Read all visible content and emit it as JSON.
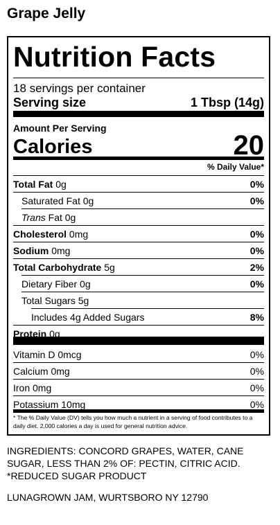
{
  "product_title": "Grape Jelly",
  "panel": {
    "title": "Nutrition Facts",
    "servings_per_container": "18 servings per container",
    "serving_size_label": "Serving size",
    "serving_size_value": "1 Tbsp (14g)",
    "amount_per_serving": "Amount Per Serving",
    "calories_label": "Calories",
    "calories_value": "20",
    "daily_value_header": "% Daily Value*",
    "nutrients": [
      {
        "name": "Total Fat",
        "amount": "0g",
        "dv": "0%"
      },
      {
        "name": "Saturated Fat",
        "amount": "0g",
        "dv": "0%"
      },
      {
        "name": "Trans",
        "amount": "Fat 0g",
        "dv": ""
      },
      {
        "name": "Cholesterol",
        "amount": "0mg",
        "dv": "0%"
      },
      {
        "name": "Sodium",
        "amount": "0mg",
        "dv": "0%"
      },
      {
        "name": "Total Carbohydrate",
        "amount": "5g",
        "dv": "2%"
      },
      {
        "name": "Dietary Fiber",
        "amount": "0g",
        "dv": "0%"
      },
      {
        "name": "Total Sugars",
        "amount": "5g",
        "dv": ""
      },
      {
        "name": "Includes 4g Added Sugars",
        "amount": "",
        "dv": "8%"
      },
      {
        "name": "Protein",
        "amount": "0g",
        "dv": ""
      }
    ],
    "vitamins": [
      {
        "name": "Vitamin D",
        "amount": "0mcg",
        "dv": "0%"
      },
      {
        "name": "Calcium",
        "amount": "0mg",
        "dv": "0%"
      },
      {
        "name": "Iron",
        "amount": "0mg",
        "dv": "0%"
      },
      {
        "name": "Potassium",
        "amount": "10mg",
        "dv": "0%"
      }
    ],
    "footnote": "* The % Daily Value (DV) tells you how much a nutrient in a serving of food contributes to a daily diet. 2,000 calories a day is used for general nutrition advice."
  },
  "ingredients_lines": [
    "INGREDIENTS: CONCORD GRAPES, WATER, CANE",
    "SUGAR, LESS THAN 2% OF: PECTIN, CITRIC ACID.",
    "*REDUCED SUGAR PRODUCT"
  ],
  "manufacturer": "LUNAGROWN JAM, WURTSBORO NY 12790"
}
